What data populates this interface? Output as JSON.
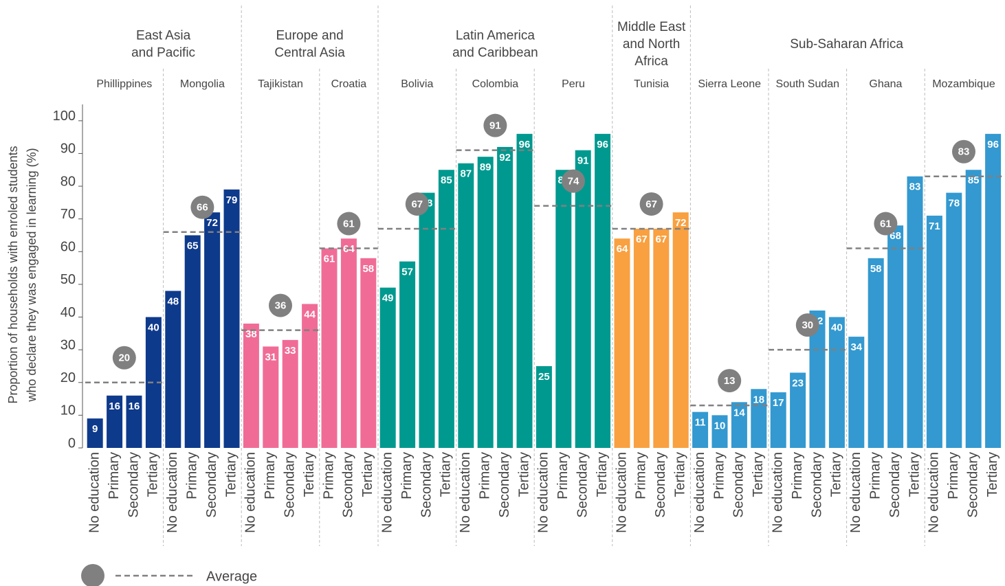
{
  "chart_data": {
    "type": "bar",
    "y_label": [
      "Proportion of households with enroled students",
      "who declare they was engaged in learning (%)"
    ],
    "ylim": [
      0,
      105
    ],
    "yticks": [
      0,
      10,
      20,
      30,
      40,
      50,
      60,
      70,
      80,
      90,
      100
    ],
    "legend_label": "Average",
    "average_color": "#808080",
    "regions": [
      {
        "name": [
          "East Asia",
          "and Pacific"
        ],
        "color": "#0e3a8c",
        "countries": [
          {
            "name": "Phillippines",
            "categories": [
              "No education",
              "Primary",
              "Secondary",
              "Tertiary"
            ],
            "values": [
              9,
              16,
              16,
              40
            ],
            "average": 20
          },
          {
            "name": "Mongolia",
            "categories": [
              "No education",
              "Primary",
              "Secondary",
              "Tertiary"
            ],
            "values": [
              48,
              65,
              72,
              79
            ],
            "average": 66
          }
        ]
      },
      {
        "name": [
          "Europe and",
          "Central Asia"
        ],
        "color": "#f06c96",
        "countries": [
          {
            "name": "Tajikistan",
            "categories": [
              "No education",
              "Primary",
              "Secondary",
              "Tertiary"
            ],
            "values": [
              38,
              31,
              33,
              44
            ],
            "average": 36
          },
          {
            "name": "Croatia",
            "categories": [
              "Primary",
              "Secondary",
              "Tertiary"
            ],
            "values": [
              61,
              64,
              58
            ],
            "average": 61
          }
        ]
      },
      {
        "name": [
          "Latin America",
          "and Caribbean"
        ],
        "color": "#00998f",
        "countries": [
          {
            "name": "Bolivia",
            "categories": [
              "No education",
              "Primary",
              "Secondary",
              "Tertiary"
            ],
            "values": [
              49,
              57,
              78,
              85
            ],
            "average": 67
          },
          {
            "name": "Colombia",
            "categories": [
              "No education",
              "Primary",
              "Secondary",
              "Tertiary"
            ],
            "values": [
              87,
              89,
              92,
              96
            ],
            "average": 91
          },
          {
            "name": "Peru",
            "categories": [
              "No education",
              "Primary",
              "Secondary",
              "Tertiary"
            ],
            "values": [
              25,
              85,
              91,
              96
            ],
            "average": 74
          }
        ]
      },
      {
        "name": [
          "Middle East",
          "and North",
          "Africa"
        ],
        "color": "#f9a040",
        "countries": [
          {
            "name": "Tunisia",
            "categories": [
              "No education",
              "Primary",
              "Secondary",
              "Tertiary"
            ],
            "values": [
              64,
              67,
              67,
              72
            ],
            "average": 67
          }
        ]
      },
      {
        "name": [
          "Sub-Saharan Africa"
        ],
        "color": "#3399d0",
        "countries": [
          {
            "name": "Sierra Leone",
            "categories": [
              "No education",
              "Primary",
              "Secondary",
              "Tertiary"
            ],
            "values": [
              11,
              10,
              14,
              18
            ],
            "average": 13
          },
          {
            "name": "South Sudan",
            "categories": [
              "No education",
              "Primary",
              "Secondary",
              "Tertiary"
            ],
            "values": [
              17,
              23,
              42,
              40
            ],
            "average": 30
          },
          {
            "name": "Ghana",
            "categories": [
              "No education",
              "Primary",
              "Secondary",
              "Tertiary"
            ],
            "values": [
              34,
              58,
              68,
              83
            ],
            "average": 61
          },
          {
            "name": "Mozambique",
            "categories": [
              "No education",
              "Primary",
              "Secondary",
              "Tertiary"
            ],
            "values": [
              71,
              78,
              85,
              96
            ],
            "average": 83
          }
        ]
      }
    ]
  }
}
